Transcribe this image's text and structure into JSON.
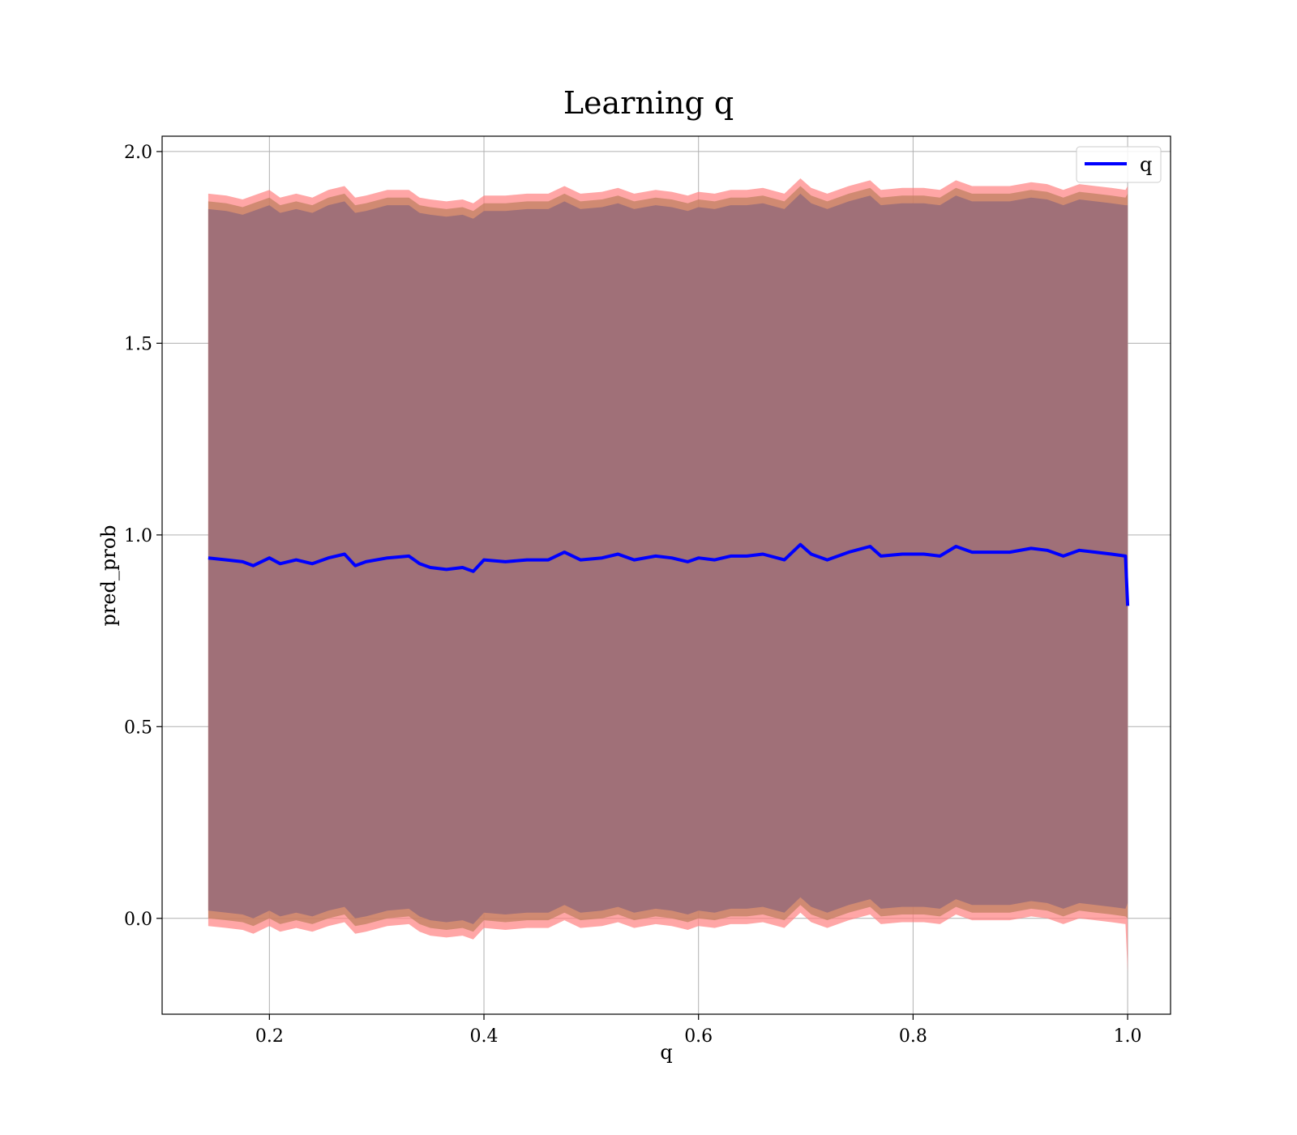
{
  "chart_data": {
    "type": "line",
    "title": "Learning q",
    "xlabel": "q",
    "ylabel": "pred_prob",
    "xlim": [
      0.1,
      1.04
    ],
    "ylim": [
      -0.25,
      2.04
    ],
    "grid": true,
    "legend": {
      "placement": "top-right",
      "entries": [
        "q"
      ]
    },
    "xticks": [
      0.2,
      0.4,
      0.6,
      0.8,
      1.0
    ],
    "xtick_labels": [
      "0.2",
      "0.4",
      "0.6",
      "0.8",
      "1.0"
    ],
    "yticks": [
      0.0,
      0.5,
      1.0,
      1.5,
      2.0
    ],
    "ytick_labels": [
      "0.0",
      "0.5",
      "1.0",
      "1.5",
      "2.0"
    ],
    "series": [
      {
        "name": "q",
        "color": "#0000ff",
        "x": [
          0.143,
          0.16,
          0.175,
          0.185,
          0.2,
          0.21,
          0.225,
          0.24,
          0.255,
          0.27,
          0.28,
          0.29,
          0.31,
          0.33,
          0.34,
          0.35,
          0.365,
          0.38,
          0.39,
          0.4,
          0.42,
          0.44,
          0.46,
          0.475,
          0.49,
          0.51,
          0.525,
          0.54,
          0.56,
          0.575,
          0.59,
          0.6,
          0.615,
          0.63,
          0.645,
          0.66,
          0.68,
          0.695,
          0.705,
          0.72,
          0.74,
          0.76,
          0.77,
          0.79,
          0.81,
          0.825,
          0.84,
          0.855,
          0.87,
          0.89,
          0.91,
          0.925,
          0.94,
          0.955,
          0.97,
          0.985,
          0.998,
          1.0
        ],
        "values": [
          0.94,
          0.935,
          0.93,
          0.92,
          0.94,
          0.925,
          0.935,
          0.925,
          0.94,
          0.95,
          0.92,
          0.93,
          0.94,
          0.945,
          0.925,
          0.915,
          0.91,
          0.915,
          0.905,
          0.935,
          0.93,
          0.935,
          0.935,
          0.955,
          0.935,
          0.94,
          0.95,
          0.935,
          0.945,
          0.94,
          0.93,
          0.94,
          0.935,
          0.945,
          0.945,
          0.95,
          0.935,
          0.975,
          0.95,
          0.935,
          0.955,
          0.97,
          0.945,
          0.95,
          0.95,
          0.945,
          0.97,
          0.955,
          0.955,
          0.955,
          0.965,
          0.96,
          0.945,
          0.96,
          0.955,
          0.95,
          0.945,
          0.815
        ]
      }
    ],
    "bands": [
      {
        "color": "#ff8080",
        "opacity": 0.7,
        "upper": [
          1.89,
          1.885,
          1.875,
          1.885,
          1.9,
          1.88,
          1.89,
          1.88,
          1.9,
          1.91,
          1.88,
          1.885,
          1.9,
          1.9,
          1.88,
          1.875,
          1.87,
          1.875,
          1.865,
          1.885,
          1.885,
          1.89,
          1.89,
          1.91,
          1.89,
          1.895,
          1.905,
          1.89,
          1.9,
          1.895,
          1.885,
          1.895,
          1.89,
          1.9,
          1.9,
          1.905,
          1.89,
          1.93,
          1.905,
          1.89,
          1.91,
          1.925,
          1.9,
          1.905,
          1.905,
          1.9,
          1.925,
          1.91,
          1.91,
          1.91,
          1.92,
          1.915,
          1.9,
          1.915,
          1.91,
          1.905,
          1.9,
          1.91
        ],
        "lower": [
          -0.02,
          -0.025,
          -0.03,
          -0.04,
          -0.02,
          -0.035,
          -0.025,
          -0.035,
          -0.02,
          -0.01,
          -0.04,
          -0.035,
          -0.02,
          -0.015,
          -0.035,
          -0.045,
          -0.05,
          -0.045,
          -0.055,
          -0.025,
          -0.03,
          -0.025,
          -0.025,
          -0.005,
          -0.025,
          -0.02,
          -0.01,
          -0.025,
          -0.015,
          -0.02,
          -0.03,
          -0.02,
          -0.025,
          -0.015,
          -0.015,
          -0.01,
          -0.025,
          0.015,
          -0.01,
          -0.025,
          -0.005,
          0.01,
          -0.015,
          -0.01,
          -0.01,
          -0.015,
          0.01,
          -0.005,
          -0.005,
          -0.005,
          0.005,
          0.0,
          -0.015,
          0.0,
          -0.005,
          -0.01,
          -0.015,
          -0.14
        ]
      },
      {
        "color": "#c08060",
        "opacity": 0.75,
        "upper": [
          1.87,
          1.865,
          1.855,
          1.865,
          1.88,
          1.86,
          1.87,
          1.86,
          1.88,
          1.89,
          1.86,
          1.865,
          1.88,
          1.88,
          1.86,
          1.855,
          1.85,
          1.855,
          1.845,
          1.865,
          1.865,
          1.87,
          1.87,
          1.89,
          1.87,
          1.875,
          1.885,
          1.87,
          1.88,
          1.875,
          1.865,
          1.875,
          1.87,
          1.88,
          1.88,
          1.885,
          1.87,
          1.91,
          1.885,
          1.87,
          1.89,
          1.905,
          1.88,
          1.885,
          1.885,
          1.88,
          1.905,
          1.89,
          1.89,
          1.89,
          1.9,
          1.895,
          1.88,
          1.895,
          1.89,
          1.885,
          1.88,
          1.89
        ],
        "lower": [
          0.0,
          -0.005,
          -0.01,
          -0.02,
          0.0,
          -0.015,
          -0.005,
          -0.015,
          0.0,
          0.01,
          -0.02,
          -0.015,
          0.0,
          0.005,
          -0.015,
          -0.025,
          -0.03,
          -0.025,
          -0.035,
          -0.005,
          -0.01,
          -0.005,
          -0.005,
          0.015,
          -0.005,
          0.0,
          0.01,
          -0.005,
          0.005,
          0.0,
          -0.01,
          0.0,
          -0.005,
          0.005,
          0.005,
          0.01,
          -0.005,
          0.035,
          0.01,
          -0.005,
          0.015,
          0.03,
          0.005,
          0.01,
          0.01,
          0.005,
          0.03,
          0.015,
          0.015,
          0.015,
          0.025,
          0.02,
          0.005,
          0.02,
          0.015,
          0.01,
          0.005,
          0.0
        ]
      },
      {
        "color": "#a07078",
        "opacity": 1.0,
        "upper": [
          1.85,
          1.845,
          1.835,
          1.845,
          1.86,
          1.84,
          1.85,
          1.84,
          1.86,
          1.87,
          1.84,
          1.845,
          1.86,
          1.86,
          1.84,
          1.835,
          1.83,
          1.835,
          1.825,
          1.845,
          1.845,
          1.85,
          1.85,
          1.87,
          1.85,
          1.855,
          1.865,
          1.85,
          1.86,
          1.855,
          1.845,
          1.855,
          1.85,
          1.86,
          1.86,
          1.865,
          1.85,
          1.89,
          1.865,
          1.85,
          1.87,
          1.885,
          1.86,
          1.865,
          1.865,
          1.86,
          1.885,
          1.87,
          1.87,
          1.87,
          1.88,
          1.875,
          1.86,
          1.875,
          1.87,
          1.865,
          1.86,
          1.86
        ],
        "lower": [
          0.02,
          0.015,
          0.01,
          0.0,
          0.02,
          0.005,
          0.015,
          0.005,
          0.02,
          0.03,
          0.0,
          0.005,
          0.02,
          0.025,
          0.005,
          -0.005,
          -0.01,
          -0.005,
          -0.015,
          0.015,
          0.01,
          0.015,
          0.015,
          0.035,
          0.015,
          0.02,
          0.03,
          0.015,
          0.025,
          0.02,
          0.01,
          0.02,
          0.015,
          0.025,
          0.025,
          0.03,
          0.015,
          0.055,
          0.03,
          0.015,
          0.035,
          0.05,
          0.025,
          0.03,
          0.03,
          0.025,
          0.05,
          0.035,
          0.035,
          0.035,
          0.045,
          0.04,
          0.025,
          0.04,
          0.035,
          0.03,
          0.025,
          0.04
        ]
      }
    ]
  }
}
